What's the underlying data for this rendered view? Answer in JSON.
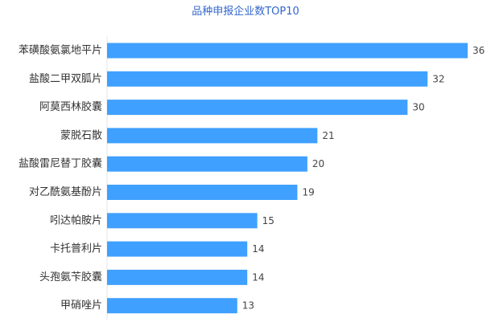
{
  "chart_data": {
    "type": "bar",
    "orientation": "horizontal",
    "title": "品种申报企业数TOP10",
    "categories": [
      "苯磺酸氨氯地平片",
      "盐酸二甲双胍片",
      "阿莫西林胶囊",
      "蒙脱石散",
      "盐酸雷尼替丁胶囊",
      "对乙酰氨基酚片",
      "吲达帕胺片",
      "卡托普利片",
      "头孢氨苄胶囊",
      "甲硝唑片"
    ],
    "values": [
      36,
      32,
      30,
      21,
      20,
      19,
      15,
      14,
      14,
      13
    ],
    "xlim": [
      0,
      36
    ],
    "grid": false,
    "legend": "none",
    "bar_color": "#3fa0ff",
    "title_color": "#3366cc"
  }
}
